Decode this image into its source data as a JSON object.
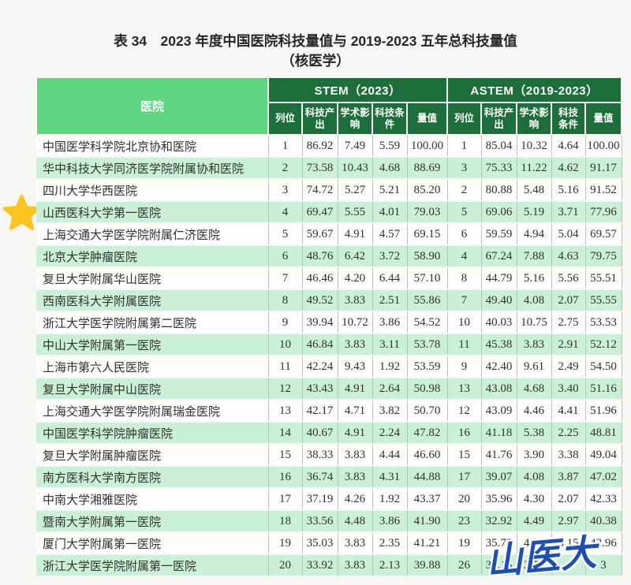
{
  "page": {
    "title_line1": "表 34　2023 年度中国医院科技量值与 2019-2023 五年总科技量值",
    "title_line2": "（核医学）"
  },
  "colors": {
    "header_dark_green": "#1d6e3a",
    "header_bright_green": "#5ed57f",
    "row_alt_green": "#cbf0d8",
    "star_yellow": "#ffc31f",
    "watermark_blue": "#1d4fb0"
  },
  "table": {
    "hospital_header": "医院",
    "group_stem": "STEM（2023）",
    "group_astem": "ASTEM（2019-2023）",
    "sub_headers": [
      "列位",
      "科技产出",
      "学术影响",
      "科技条件",
      "量值"
    ],
    "rows": [
      {
        "hospital": "中国医学科学院北京协和医院",
        "starred": false,
        "stem": {
          "rank": "1",
          "output": "86.92",
          "academic": "7.49",
          "condition": "5.59",
          "total": "100.00"
        },
        "astem": {
          "rank": "1",
          "output": "85.04",
          "academic": "10.32",
          "condition": "4.64",
          "total": "100.00"
        }
      },
      {
        "hospital": "华中科技大学同济医学院附属协和医院",
        "starred": false,
        "stem": {
          "rank": "2",
          "output": "73.58",
          "academic": "10.43",
          "condition": "4.68",
          "total": "88.69"
        },
        "astem": {
          "rank": "3",
          "output": "75.33",
          "academic": "11.22",
          "condition": "4.62",
          "total": "91.17"
        }
      },
      {
        "hospital": "四川大学华西医院",
        "starred": false,
        "stem": {
          "rank": "3",
          "output": "74.72",
          "academic": "5.27",
          "condition": "5.21",
          "total": "85.20"
        },
        "astem": {
          "rank": "2",
          "output": "80.88",
          "academic": "5.48",
          "condition": "5.16",
          "total": "91.52"
        }
      },
      {
        "hospital": "山西医科大学第一医院",
        "starred": true,
        "stem": {
          "rank": "4",
          "output": "69.47",
          "academic": "5.55",
          "condition": "4.01",
          "total": "79.03"
        },
        "astem": {
          "rank": "5",
          "output": "69.06",
          "academic": "5.19",
          "condition": "3.71",
          "total": "77.96"
        }
      },
      {
        "hospital": "上海交通大学医学院附属仁济医院",
        "starred": false,
        "stem": {
          "rank": "5",
          "output": "59.67",
          "academic": "4.91",
          "condition": "4.57",
          "total": "69.15"
        },
        "astem": {
          "rank": "6",
          "output": "59.59",
          "academic": "4.94",
          "condition": "5.04",
          "total": "69.57"
        }
      },
      {
        "hospital": "北京大学肿瘤医院",
        "starred": false,
        "stem": {
          "rank": "6",
          "output": "48.76",
          "academic": "6.42",
          "condition": "3.72",
          "total": "58.90"
        },
        "astem": {
          "rank": "4",
          "output": "67.24",
          "academic": "7.88",
          "condition": "4.63",
          "total": "79.75"
        }
      },
      {
        "hospital": "复旦大学附属华山医院",
        "starred": false,
        "stem": {
          "rank": "7",
          "output": "46.46",
          "academic": "4.20",
          "condition": "6.44",
          "total": "57.10"
        },
        "astem": {
          "rank": "8",
          "output": "44.79",
          "academic": "5.16",
          "condition": "5.56",
          "total": "55.51"
        }
      },
      {
        "hospital": "西南医科大学附属医院",
        "starred": false,
        "stem": {
          "rank": "8",
          "output": "49.52",
          "academic": "3.83",
          "condition": "2.51",
          "total": "55.86"
        },
        "astem": {
          "rank": "7",
          "output": "49.40",
          "academic": "4.08",
          "condition": "2.07",
          "total": "55.55"
        }
      },
      {
        "hospital": "浙江大学医学院附属第二医院",
        "starred": false,
        "stem": {
          "rank": "9",
          "output": "39.94",
          "academic": "10.72",
          "condition": "3.86",
          "total": "54.52"
        },
        "astem": {
          "rank": "10",
          "output": "40.03",
          "academic": "10.75",
          "condition": "2.75",
          "total": "53.53"
        }
      },
      {
        "hospital": "中山大学附属第一医院",
        "starred": false,
        "stem": {
          "rank": "10",
          "output": "46.84",
          "academic": "3.83",
          "condition": "3.11",
          "total": "53.78"
        },
        "astem": {
          "rank": "11",
          "output": "45.38",
          "academic": "3.83",
          "condition": "2.91",
          "total": "52.12"
        }
      },
      {
        "hospital": "上海市第六人民医院",
        "starred": false,
        "stem": {
          "rank": "11",
          "output": "42.24",
          "academic": "9.43",
          "condition": "1.92",
          "total": "53.59"
        },
        "astem": {
          "rank": "9",
          "output": "42.40",
          "academic": "9.61",
          "condition": "2.49",
          "total": "54.50"
        }
      },
      {
        "hospital": "复旦大学附属中山医院",
        "starred": false,
        "stem": {
          "rank": "12",
          "output": "43.43",
          "academic": "4.91",
          "condition": "2.64",
          "total": "50.98"
        },
        "astem": {
          "rank": "13",
          "output": "43.08",
          "academic": "4.68",
          "condition": "3.40",
          "total": "51.16"
        }
      },
      {
        "hospital": "上海交通大学医学院附属瑞金医院",
        "starred": false,
        "stem": {
          "rank": "13",
          "output": "42.17",
          "academic": "4.71",
          "condition": "3.82",
          "total": "50.70"
        },
        "astem": {
          "rank": "12",
          "output": "43.09",
          "academic": "4.46",
          "condition": "4.41",
          "total": "51.96"
        }
      },
      {
        "hospital": "中国医学科学院肿瘤医院",
        "starred": false,
        "stem": {
          "rank": "14",
          "output": "40.67",
          "academic": "4.91",
          "condition": "2.24",
          "total": "47.82"
        },
        "astem": {
          "rank": "16",
          "output": "41.18",
          "academic": "5.38",
          "condition": "2.25",
          "total": "48.81"
        }
      },
      {
        "hospital": "复旦大学附属肿瘤医院",
        "starred": false,
        "stem": {
          "rank": "15",
          "output": "38.33",
          "academic": "3.83",
          "condition": "4.44",
          "total": "46.60"
        },
        "astem": {
          "rank": "15",
          "output": "41.76",
          "academic": "3.90",
          "condition": "3.38",
          "total": "49.04"
        }
      },
      {
        "hospital": "南方医科大学南方医院",
        "starred": false,
        "stem": {
          "rank": "16",
          "output": "36.74",
          "academic": "3.83",
          "condition": "4.31",
          "total": "44.88"
        },
        "astem": {
          "rank": "17",
          "output": "39.07",
          "academic": "4.08",
          "condition": "3.87",
          "total": "47.02"
        }
      },
      {
        "hospital": "中南大学湘雅医院",
        "starred": false,
        "stem": {
          "rank": "17",
          "output": "37.19",
          "academic": "4.26",
          "condition": "1.92",
          "total": "43.37"
        },
        "astem": {
          "rank": "20",
          "output": "35.96",
          "academic": "4.30",
          "condition": "2.07",
          "total": "42.33"
        }
      },
      {
        "hospital": "暨南大学附属第一医院",
        "starred": false,
        "stem": {
          "rank": "18",
          "output": "33.56",
          "academic": "4.48",
          "condition": "3.86",
          "total": "41.90"
        },
        "astem": {
          "rank": "23",
          "output": "32.92",
          "academic": "4.49",
          "condition": "2.97",
          "total": "40.38"
        }
      },
      {
        "hospital": "厦门大学附属第一医院",
        "starred": false,
        "stem": {
          "rank": "19",
          "output": "35.03",
          "academic": "3.83",
          "condition": "2.35",
          "total": "41.21"
        },
        "astem": {
          "rank": "19",
          "output": "35.73",
          "academic": "4.08",
          "condition": "3.15",
          "total": "42.96"
        }
      },
      {
        "hospital": "浙江大学医学院附属第一医院",
        "starred": false,
        "stem": {
          "rank": "20",
          "output": "33.92",
          "academic": "3.83",
          "condition": "2.13",
          "total": "39.88"
        },
        "astem": {
          "rank": "26",
          "output": "33.15",
          "academic": "3.71",
          "condition": "",
          "total": "3"
        }
      }
    ]
  },
  "annotations": {
    "star_icon": "star",
    "starred_hospital": "山西医科大学第一医院",
    "watermark_text": "山医大"
  }
}
